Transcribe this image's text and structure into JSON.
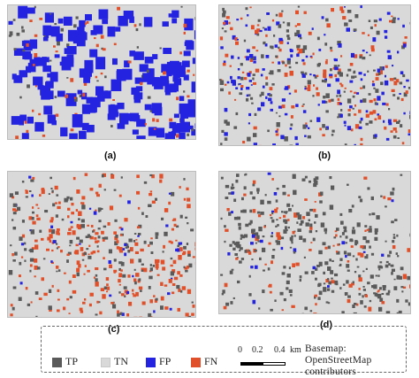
{
  "panels": [
    {
      "id": "a",
      "label": "(a)",
      "fp_dominant": true
    },
    {
      "id": "b",
      "label": "(b)",
      "fp_dominant": false
    },
    {
      "id": "c",
      "label": "(c)",
      "fp_dominant": false
    },
    {
      "id": "d",
      "label": "(d)",
      "fp_dominant": false
    }
  ],
  "colors": {
    "background": "#d9d9d9",
    "tp": "#5a5a5a",
    "tn": "#d9d9d9",
    "fp": "#2424e0",
    "fn": "#e0502a"
  },
  "legend": {
    "items": [
      {
        "label": "TP",
        "color": "#5a5a5a"
      },
      {
        "label": "TN",
        "color": "#d9d9d9"
      },
      {
        "label": "FP",
        "color": "#2424e0"
      },
      {
        "label": "FN",
        "color": "#e0502a"
      }
    ],
    "scale": {
      "t0": "0",
      "t1": "0.2",
      "t2": "0.4",
      "unit": "km"
    },
    "attribution_line1": "Basemap:  OpenStreetMap",
    "attribution_line2": "contributors"
  }
}
